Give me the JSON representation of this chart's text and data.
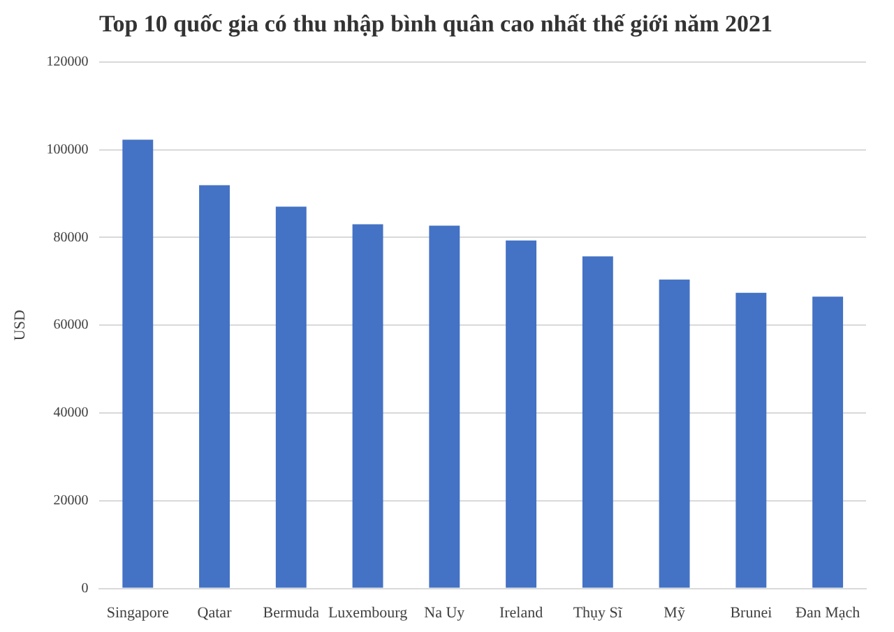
{
  "chart_data": {
    "type": "bar",
    "title": "Top 10 quốc gia có thu nhập bình quân cao nhất thế giới năm 2021",
    "ylabel": "USD",
    "categories": [
      "Singapore",
      "Qatar",
      "Bermuda",
      "Luxembourg",
      "Na Uy",
      "Ireland",
      "Thụy Sĩ",
      "Mỹ",
      "Brunei",
      "Đan Mạch"
    ],
    "values": [
      102300,
      91900,
      87000,
      83000,
      82700,
      79300,
      75700,
      70400,
      67400,
      66500
    ],
    "color": "#4472c4",
    "ylim": [
      0,
      120000
    ],
    "yticks": [
      0,
      20000,
      40000,
      60000,
      80000,
      100000,
      120000
    ],
    "grid": "y",
    "legend": false
  }
}
